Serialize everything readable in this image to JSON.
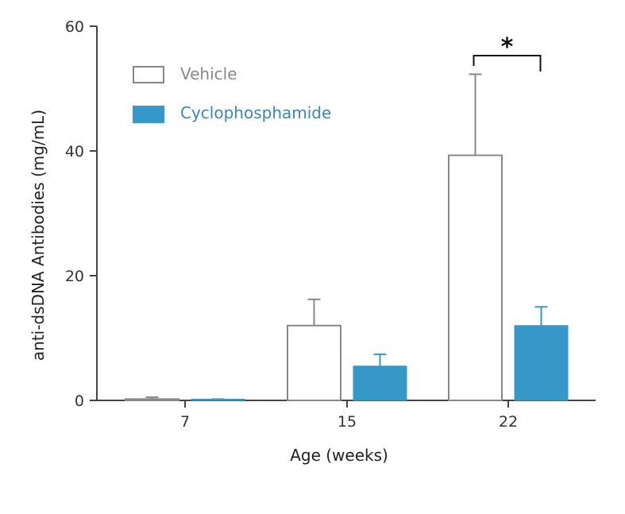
{
  "chart_data": {
    "type": "bar",
    "title": "",
    "xlabel": "Age (weeks)",
    "ylabel": "anti-dsDNA Antibodies (mg/mL)",
    "ylim": [
      0,
      60
    ],
    "yticks": [
      "0",
      "20",
      "40",
      "60"
    ],
    "categories": [
      "7",
      "15",
      "22"
    ],
    "series": [
      {
        "name": "Vehicle",
        "values": [
          0.2,
          12,
          39.3
        ],
        "errors": [
          0.3,
          4.2,
          13
        ],
        "color": "#ffffff",
        "stroke": "#888888"
      },
      {
        "name": "Cyclophosphamide",
        "values": [
          0.1,
          5.5,
          12
        ],
        "errors": [
          0.1,
          1.9,
          3
        ],
        "color": "#3697c9",
        "stroke": "#3697c9"
      }
    ],
    "legend_position": "top-left",
    "grid": false,
    "annotations": [
      {
        "text": "*",
        "category": "22",
        "type": "significance-bracket"
      }
    ]
  },
  "colors": {
    "vehicle_text": "#8a8a8a",
    "cyclo_text": "#3a86b4",
    "axis": "#444444"
  }
}
